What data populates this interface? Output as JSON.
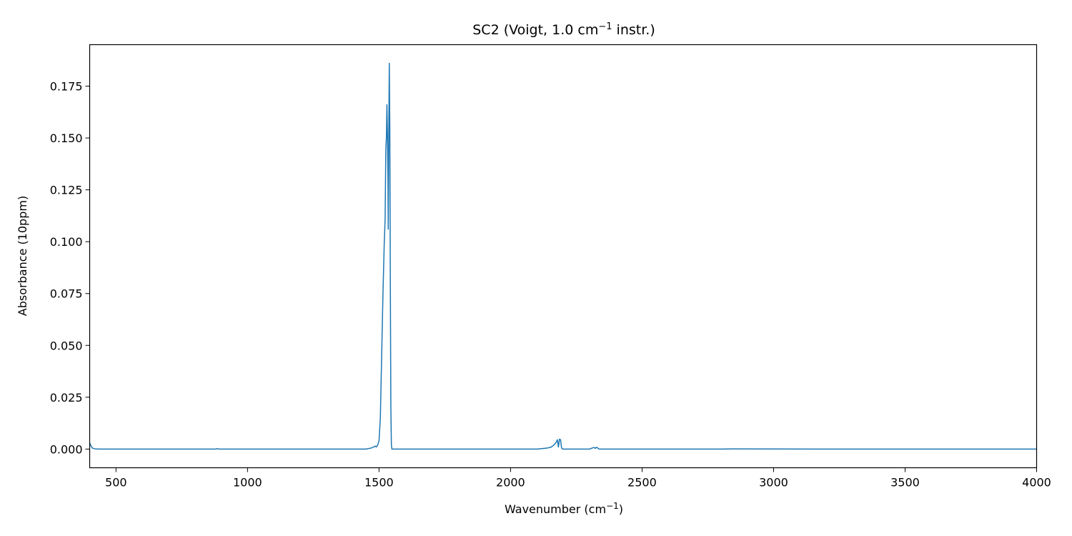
{
  "chart_data": {
    "type": "line",
    "title": {
      "main": "SC2 (Voigt, 1.0 cm",
      "sup": "−1",
      "tail": " instr.)"
    },
    "xlabel": {
      "main": "Wavenumber (cm",
      "sup": "−1",
      "tail": ")"
    },
    "ylabel": "Absorbance (10ppm)",
    "xlim": [
      400,
      4000
    ],
    "ylim": [
      -0.009,
      0.195
    ],
    "xticks": [
      {
        "value": 500,
        "label": "500"
      },
      {
        "value": 1000,
        "label": "1000"
      },
      {
        "value": 1500,
        "label": "1500"
      },
      {
        "value": 2000,
        "label": "2000"
      },
      {
        "value": 2500,
        "label": "2500"
      },
      {
        "value": 3000,
        "label": "3000"
      },
      {
        "value": 3500,
        "label": "3500"
      },
      {
        "value": 4000,
        "label": "4000"
      }
    ],
    "yticks": [
      {
        "value": 0.0,
        "label": "0.000"
      },
      {
        "value": 0.025,
        "label": "0.025"
      },
      {
        "value": 0.05,
        "label": "0.050"
      },
      {
        "value": 0.075,
        "label": "0.075"
      },
      {
        "value": 0.1,
        "label": "0.100"
      },
      {
        "value": 0.125,
        "label": "0.125"
      },
      {
        "value": 0.15,
        "label": "0.150"
      },
      {
        "value": 0.175,
        "label": "0.175"
      }
    ],
    "grid": false,
    "series": [
      {
        "name": "SC2",
        "color": "#1f77b4",
        "x": [
          400,
          405,
          410,
          420,
          440,
          600,
          880,
          885,
          890,
          900,
          1200,
          1450,
          1470,
          1480,
          1485,
          1490,
          1495,
          1500,
          1505,
          1510,
          1515,
          1520,
          1523,
          1526,
          1528,
          1530,
          1532,
          1534,
          1535,
          1537,
          1539,
          1541,
          1543,
          1545,
          1547,
          1549,
          1552,
          1560,
          1800,
          2100,
          2140,
          2155,
          2165,
          2172,
          2178,
          2182,
          2186,
          2190,
          2194,
          2198,
          2203,
          2210,
          2300,
          2310,
          2318,
          2322,
          2327,
          2332,
          2337,
          2345,
          2400,
          2800,
          2850,
          3200,
          3600,
          4000
        ],
        "y": [
          0.003,
          0.0015,
          0.0005,
          0.0001,
          0.0,
          0.0,
          0.0,
          0.0003,
          0.0,
          0.0,
          0.0,
          0.0,
          0.0005,
          0.001,
          0.0015,
          0.001,
          0.002,
          0.004,
          0.015,
          0.045,
          0.075,
          0.1,
          0.11,
          0.145,
          0.15,
          0.166,
          0.152,
          0.131,
          0.106,
          0.15,
          0.186,
          0.155,
          0.08,
          0.02,
          0.002,
          0.0,
          0.0,
          0.0,
          0.0,
          0.0,
          0.0005,
          0.001,
          0.002,
          0.003,
          0.0045,
          0.001,
          0.0048,
          0.0045,
          0.0005,
          0.0,
          0.0,
          0.0,
          0.0,
          0.0005,
          0.0008,
          0.0003,
          0.0009,
          0.0004,
          0.0,
          0.0,
          0.0,
          0.0,
          0.0001,
          0.0,
          0.0,
          0.0
        ]
      }
    ]
  }
}
